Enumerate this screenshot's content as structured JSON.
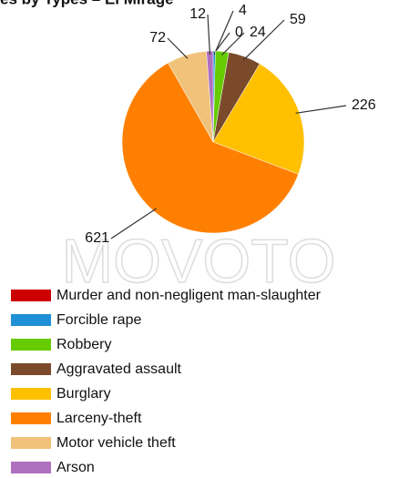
{
  "chart_data": {
    "type": "pie",
    "title": "es by Types – El Mirage",
    "watermark": "MOVOTO",
    "categories": [
      "Murder and non-negligent man-slaughter",
      "Forcible rape",
      "Robbery",
      "Aggravated assault",
      "Burglary",
      "Larceny-theft",
      "Motor vehicle theft",
      "Arson"
    ],
    "values": [
      0,
      4,
      24,
      59,
      226,
      621,
      72,
      12
    ],
    "colors": [
      "#cc0000",
      "#1f8fd6",
      "#66cc00",
      "#7b4a2a",
      "#ffc000",
      "#ff8000",
      "#f0c27a",
      "#b070c0"
    ]
  }
}
